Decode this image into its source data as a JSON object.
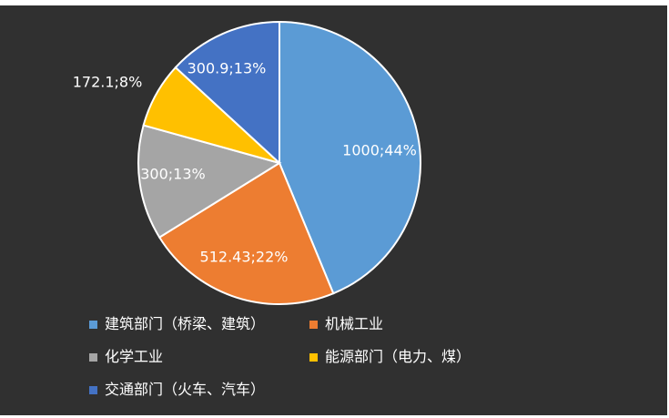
{
  "chart_data": {
    "type": "pie",
    "start_angle_deg": 0,
    "direction": "clockwise",
    "slices": [
      {
        "name": "建筑部门（桥梁、建筑）",
        "value": 1000,
        "percent": 44,
        "label": "1000;44%",
        "color": "#5b9bd5",
        "label_color": "#ffffff"
      },
      {
        "name": "机械工业",
        "value": 512.43,
        "percent": 22,
        "label": "512.43;22%",
        "color": "#ed7d31",
        "label_color": "#ffffff"
      },
      {
        "name": "化学工业",
        "value": 300,
        "percent": 13,
        "label": "300;13%",
        "color": "#a5a5a5",
        "label_color": "#ffffff"
      },
      {
        "name": "能源部门（电力、煤）",
        "value": 172.1,
        "percent": 8,
        "label": "172.1;8%",
        "color": "#ffc000",
        "label_color": "#ffffff"
      },
      {
        "name": "交通部门（火车、汽车）",
        "value": 300.9,
        "percent": 13,
        "label": "300.9;13%",
        "color": "#4472c4",
        "label_color": "#ffffff"
      }
    ],
    "legend_position": "bottom",
    "background_color": "#303030"
  },
  "legend": {
    "items": [
      {
        "label": "建筑部门（桥梁、建筑）",
        "color": "#5b9bd5"
      },
      {
        "label": "机械工业",
        "color": "#ed7d31"
      },
      {
        "label": "化学工业",
        "color": "#a5a5a5"
      },
      {
        "label": "能源部门（电力、煤）",
        "color": "#ffc000"
      },
      {
        "label": "交通部门（火车、汽车）",
        "color": "#4472c4"
      }
    ]
  }
}
